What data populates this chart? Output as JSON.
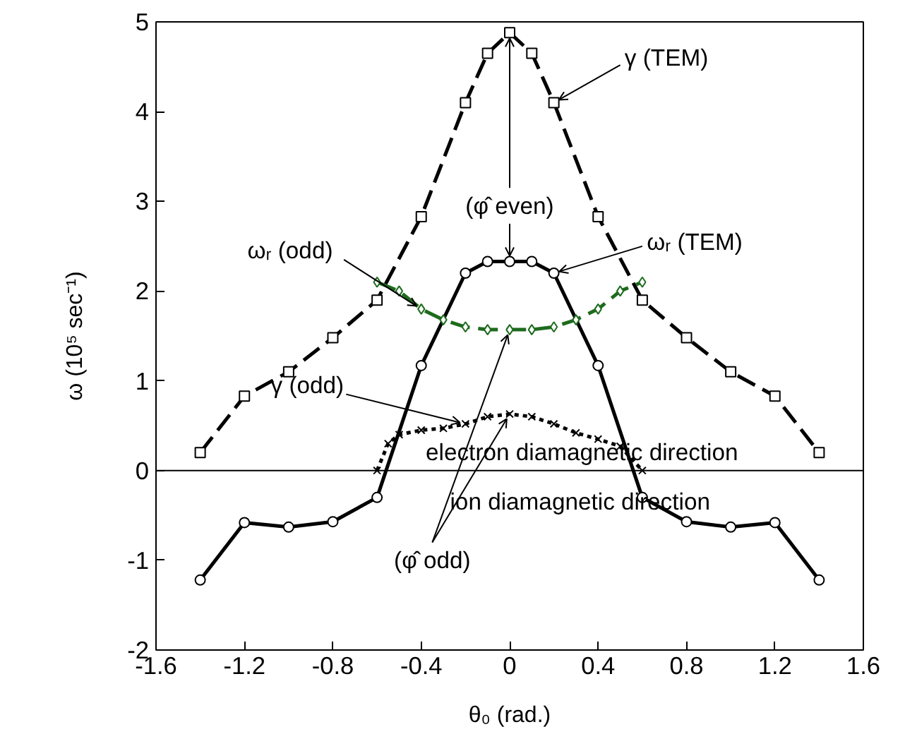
{
  "chart_data": {
    "type": "line",
    "xlabel": "θ₀ (rad.)",
    "ylabel": "ω (10⁵ sec⁻¹)",
    "xlim": [
      -1.6,
      1.6
    ],
    "xticks": [
      -1.6,
      -1.2,
      -0.8,
      -0.4,
      0,
      0.4,
      0.8,
      1.2,
      1.6
    ],
    "ylim": [
      -2,
      5
    ],
    "yticks": [
      -2,
      -1,
      0,
      1,
      2,
      3,
      4,
      5
    ],
    "grid": false,
    "series": [
      {
        "name": "γ (TEM)",
        "color": "#000000",
        "marker": "square",
        "line_style": "dashed",
        "x": [
          -1.4,
          -1.2,
          -1.0,
          -0.8,
          -0.6,
          -0.4,
          -0.2,
          -0.1,
          0,
          0.1,
          0.2,
          0.4,
          0.6,
          0.8,
          1.0,
          1.2,
          1.4
        ],
        "values": [
          0.2,
          0.83,
          1.1,
          1.48,
          1.9,
          2.83,
          4.1,
          4.65,
          4.88,
          4.65,
          4.1,
          2.83,
          1.9,
          1.48,
          1.1,
          0.83,
          0.2
        ]
      },
      {
        "name": "ωᵣ (TEM)",
        "color": "#000000",
        "marker": "circle",
        "line_style": "solid",
        "x": [
          -1.4,
          -1.2,
          -1.0,
          -0.8,
          -0.6,
          -0.4,
          -0.2,
          -0.1,
          0,
          0.1,
          0.2,
          0.4,
          0.6,
          0.8,
          1.0,
          1.2,
          1.4
        ],
        "values": [
          -1.22,
          -0.58,
          -0.63,
          -0.57,
          -0.3,
          1.17,
          2.2,
          2.33,
          2.33,
          2.33,
          2.2,
          1.17,
          -0.3,
          -0.57,
          -0.63,
          -0.58,
          -1.22
        ]
      },
      {
        "name": "ωᵣ (odd)",
        "color": "#1e6b1e",
        "marker": "diamond",
        "line_style": "dashed",
        "x": [
          -0.6,
          -0.5,
          -0.4,
          -0.3,
          -0.2,
          -0.1,
          0,
          0.1,
          0.2,
          0.3,
          0.4,
          0.5,
          0.6
        ],
        "values": [
          2.1,
          2.0,
          1.8,
          1.68,
          1.6,
          1.57,
          1.57,
          1.57,
          1.6,
          1.68,
          1.8,
          2.0,
          2.1
        ]
      },
      {
        "name": "γ (odd)",
        "color": "#000000",
        "marker": "cross",
        "line_style": "dotted",
        "x": [
          -0.6,
          -0.55,
          -0.5,
          -0.4,
          -0.3,
          -0.2,
          -0.1,
          0,
          0.1,
          0.2,
          0.3,
          0.4,
          0.5,
          0.6
        ],
        "values": [
          0.0,
          0.3,
          0.4,
          0.45,
          0.47,
          0.52,
          0.6,
          0.63,
          0.6,
          0.52,
          0.42,
          0.35,
          0.27,
          0.0
        ]
      }
    ],
    "ref_lines": [
      {
        "axis": "y",
        "value": 0,
        "color": "#000000",
        "line_style": "solid"
      }
    ],
    "annotations": [
      {
        "text": "(φ̂ even)",
        "x": 0,
        "y": 4.88
      },
      {
        "text": "(φ̂ odd)",
        "x": 0,
        "y": 1.57
      },
      "electron diamagnetic direction",
      "ion diamagnetic direction"
    ]
  }
}
